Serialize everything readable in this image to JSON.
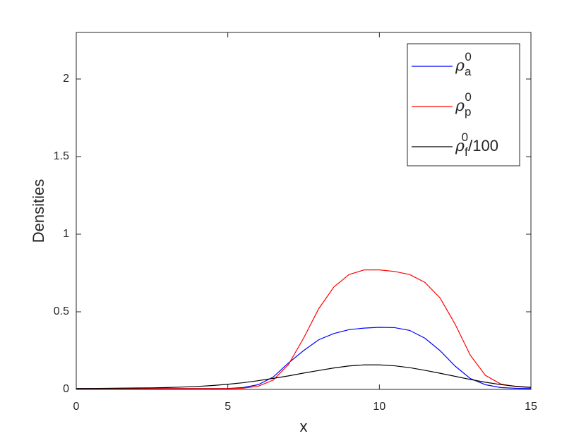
{
  "chart_data": {
    "type": "line",
    "x_label": "x",
    "y_label": "Densities",
    "x": [
      0,
      0.5,
      1,
      1.5,
      2,
      2.5,
      3,
      3.5,
      4,
      4.5,
      5,
      5.5,
      6,
      6.5,
      7,
      7.5,
      8,
      8.5,
      9,
      9.5,
      10,
      10.5,
      11,
      11.5,
      12,
      12.5,
      13,
      13.5,
      14,
      14.5,
      15
    ],
    "series": [
      {
        "name": "ρ_a^0",
        "color": "#0000ff",
        "values": [
          0.005,
          0.005,
          0.005,
          0.005,
          0.005,
          0.005,
          0.005,
          0.005,
          0.005,
          0.005,
          0.006,
          0.012,
          0.03,
          0.08,
          0.17,
          0.25,
          0.32,
          0.36,
          0.385,
          0.395,
          0.4,
          0.398,
          0.38,
          0.33,
          0.25,
          0.15,
          0.07,
          0.03,
          0.012,
          0.007,
          0.005
        ]
      },
      {
        "name": "ρ_p^0",
        "color": "#ff0000",
        "values": [
          0.005,
          0.005,
          0.005,
          0.005,
          0.005,
          0.005,
          0.005,
          0.005,
          0.005,
          0.005,
          0.005,
          0.008,
          0.02,
          0.06,
          0.16,
          0.33,
          0.52,
          0.66,
          0.74,
          0.77,
          0.77,
          0.76,
          0.74,
          0.69,
          0.59,
          0.42,
          0.22,
          0.09,
          0.035,
          0.018,
          0.012
        ]
      },
      {
        "name": "ρ_f^0/100",
        "color": "#000000",
        "values": [
          0.005,
          0.006,
          0.007,
          0.008,
          0.009,
          0.01,
          0.012,
          0.015,
          0.019,
          0.025,
          0.033,
          0.043,
          0.056,
          0.071,
          0.087,
          0.105,
          0.122,
          0.138,
          0.151,
          0.158,
          0.158,
          0.152,
          0.14,
          0.123,
          0.104,
          0.084,
          0.064,
          0.046,
          0.031,
          0.02,
          0.013
        ]
      }
    ],
    "xlim": [
      0,
      15
    ],
    "xticks": [
      0,
      5,
      10,
      15
    ],
    "ylim": [
      0,
      2.3
    ],
    "yticks": [
      0,
      0.5,
      1,
      1.5,
      2
    ],
    "legend": "northeast",
    "grid": false
  }
}
